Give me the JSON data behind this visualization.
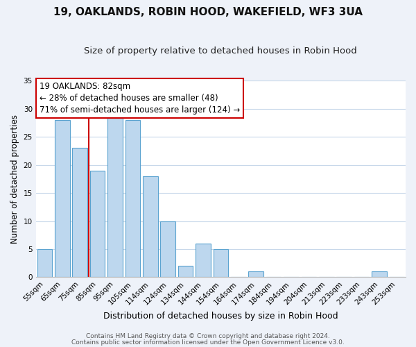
{
  "title": "19, OAKLANDS, ROBIN HOOD, WAKEFIELD, WF3 3UA",
  "subtitle": "Size of property relative to detached houses in Robin Hood",
  "xlabel": "Distribution of detached houses by size in Robin Hood",
  "ylabel": "Number of detached properties",
  "bar_labels": [
    "55sqm",
    "65sqm",
    "75sqm",
    "85sqm",
    "95sqm",
    "105sqm",
    "114sqm",
    "124sqm",
    "134sqm",
    "144sqm",
    "154sqm",
    "164sqm",
    "174sqm",
    "184sqm",
    "194sqm",
    "204sqm",
    "213sqm",
    "223sqm",
    "233sqm",
    "243sqm",
    "253sqm"
  ],
  "bar_values": [
    5,
    28,
    23,
    19,
    29,
    28,
    18,
    10,
    2,
    6,
    5,
    0,
    1,
    0,
    0,
    0,
    0,
    0,
    0,
    1,
    0
  ],
  "bar_color": "#bdd7ee",
  "bar_edge_color": "#5ba3d0",
  "ylim": [
    0,
    35
  ],
  "yticks": [
    0,
    5,
    10,
    15,
    20,
    25,
    30,
    35
  ],
  "vline_color": "#cc0000",
  "annotation_line1": "19 OAKLANDS: 82sqm",
  "annotation_line2": "← 28% of detached houses are smaller (48)",
  "annotation_line3": "71% of semi-detached houses are larger (124) →",
  "footer_line1": "Contains HM Land Registry data © Crown copyright and database right 2024.",
  "footer_line2": "Contains public sector information licensed under the Open Government Licence v3.0.",
  "background_color": "#eef2f9",
  "plot_bg_color": "#ffffff",
  "grid_color": "#c8d8ea",
  "title_fontsize": 11,
  "subtitle_fontsize": 9.5,
  "xlabel_fontsize": 9,
  "ylabel_fontsize": 8.5,
  "tick_fontsize": 7.5,
  "ann_fontsize": 8.5,
  "footer_fontsize": 6.5
}
